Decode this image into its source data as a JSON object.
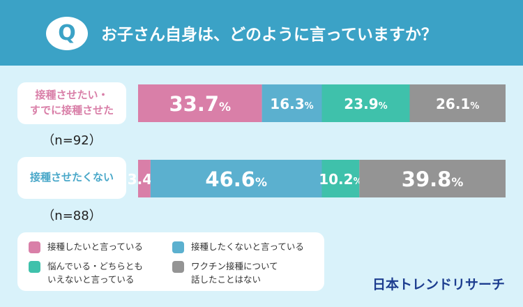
{
  "header": {
    "badge": "Q",
    "title": "お子さん自身は、どのように言っていますか？"
  },
  "rows": [
    {
      "label": "接種させたい・\nすでに接種させた",
      "n": "（n=92）",
      "color": "#d97fa8"
    },
    {
      "label": "接種させたくない",
      "n": "（n=88）",
      "color": "#4aa8c9"
    }
  ],
  "legend": [
    {
      "label": "接種したいと言っている",
      "color": "#d97fa8"
    },
    {
      "label": "接種したくないと言っている",
      "color": "#5bb0cf"
    },
    {
      "label": "悩んでいる・どちらとも\nいえないと言っている",
      "color": "#3fc1ab"
    },
    {
      "label": "ワクチン接種について\n話したことはない",
      "color": "#949494"
    }
  ],
  "brand": "日本トレンドリサーチ",
  "chart_data": {
    "type": "bar",
    "orientation": "horizontal",
    "stacked": true,
    "percent": true,
    "categories": [
      "接種させたい・すでに接種させた",
      "接種させたくない"
    ],
    "series": [
      {
        "name": "接種したいと言っている",
        "values": [
          33.7,
          3.4
        ],
        "color": "#d97fa8"
      },
      {
        "name": "接種したくないと言っている",
        "values": [
          16.3,
          46.6
        ],
        "color": "#5bb0cf"
      },
      {
        "name": "悩んでいる・どちらともいえないと言っている",
        "values": [
          23.9,
          10.2
        ],
        "color": "#3fc1ab"
      },
      {
        "name": "ワクチン接種について話したことはない",
        "values": [
          26.1,
          39.8
        ],
        "color": "#949494"
      }
    ],
    "xlim": [
      0,
      100
    ],
    "unit": "%",
    "grid": false,
    "legend_position": "bottom-left"
  }
}
